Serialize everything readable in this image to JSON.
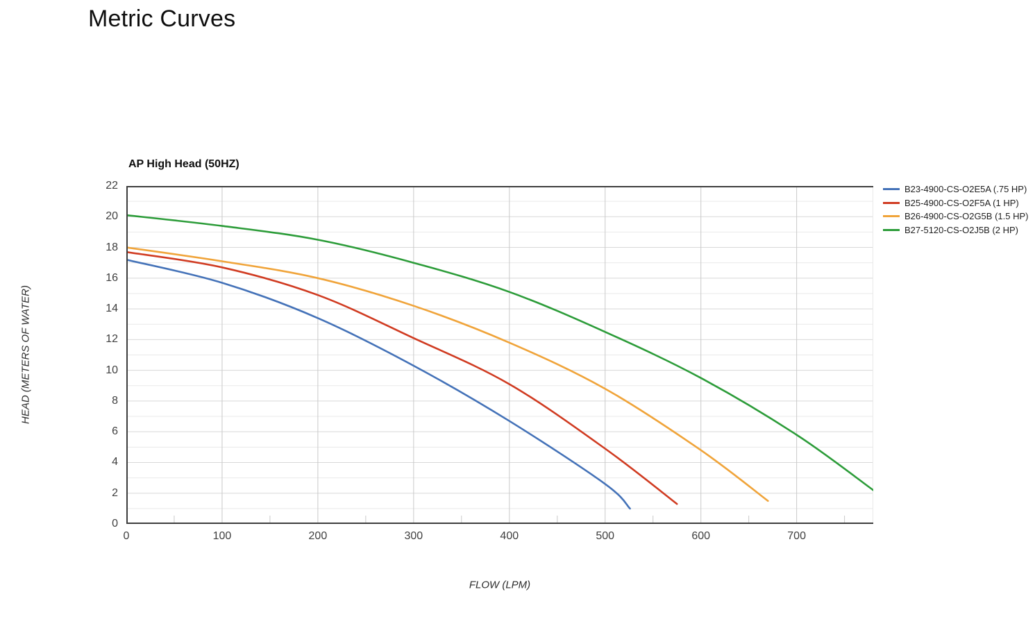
{
  "page": {
    "title": "Metric Curves"
  },
  "chart_data": {
    "type": "line",
    "title": "AP High Head (50HZ)",
    "xlabel": "FLOW (LPM)",
    "ylabel": "HEAD (METERS OF WATER)",
    "xlim": [
      0,
      780
    ],
    "ylim": [
      0,
      22
    ],
    "x_ticks": [
      0,
      100,
      200,
      300,
      400,
      500,
      600,
      700
    ],
    "y_ticks": [
      0,
      2,
      4,
      6,
      8,
      10,
      12,
      14,
      16,
      18,
      20,
      22
    ],
    "x_minor_step": 50,
    "y_minor_step": 1,
    "grid": true,
    "legend_position": "right",
    "series": [
      {
        "name": "B23-4900-CS-O2E5A (.75 HP)",
        "color": "#4472b8",
        "points": [
          [
            0,
            17.2
          ],
          [
            100,
            15.7
          ],
          [
            200,
            13.4
          ],
          [
            300,
            10.3
          ],
          [
            400,
            6.7
          ],
          [
            500,
            2.6
          ],
          [
            526,
            1.0
          ]
        ]
      },
      {
        "name": "B25-4900-CS-O2F5A (1 HP)",
        "color": "#d03b21",
        "points": [
          [
            0,
            17.7
          ],
          [
            100,
            16.7
          ],
          [
            200,
            14.9
          ],
          [
            300,
            12.1
          ],
          [
            400,
            9.1
          ],
          [
            500,
            4.9
          ],
          [
            575,
            1.3
          ]
        ]
      },
      {
        "name": "B26-4900-CS-O2G5B (1.5 HP)",
        "color": "#f0a43a",
        "points": [
          [
            0,
            18.0
          ],
          [
            100,
            17.1
          ],
          [
            200,
            16.0
          ],
          [
            300,
            14.2
          ],
          [
            400,
            11.8
          ],
          [
            500,
            8.8
          ],
          [
            600,
            4.8
          ],
          [
            670,
            1.5
          ]
        ]
      },
      {
        "name": "B27-5120-CS-O2J5B (2 HP)",
        "color": "#2c9c39",
        "points": [
          [
            0,
            20.1
          ],
          [
            100,
            19.4
          ],
          [
            200,
            18.5
          ],
          [
            300,
            17.0
          ],
          [
            400,
            15.1
          ],
          [
            500,
            12.5
          ],
          [
            600,
            9.5
          ],
          [
            700,
            5.8
          ],
          [
            780,
            2.2
          ]
        ]
      }
    ]
  },
  "layout_colors": {
    "grid_minor": "#e9e9e9",
    "grid_major_h": "#d8d8d8",
    "grid_major_v": "#c9c9c9",
    "axis_border": "#3c3c3c",
    "tick_text": "#3e3e3e"
  }
}
